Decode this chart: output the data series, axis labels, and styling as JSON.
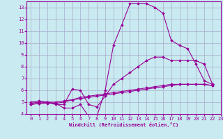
{
  "background_color": "#c8eaf0",
  "grid_color": "#aaaacc",
  "line_color": "#990099",
  "xlim": [
    -0.5,
    23
  ],
  "ylim": [
    4,
    13.5
  ],
  "yticks": [
    4,
    5,
    6,
    7,
    8,
    9,
    10,
    11,
    12,
    13
  ],
  "xticks": [
    0,
    1,
    2,
    3,
    4,
    5,
    6,
    7,
    8,
    9,
    10,
    11,
    12,
    13,
    14,
    15,
    16,
    17,
    18,
    19,
    20,
    21,
    22,
    23
  ],
  "xlabel": "Windchill (Refroidissement éolien,°C)",
  "series": [
    {
      "x": [
        0,
        1,
        2,
        3,
        4,
        5,
        6,
        7,
        8,
        9,
        10,
        11,
        12,
        13,
        14,
        15,
        16,
        17,
        18,
        19,
        20,
        21,
        22
      ],
      "y": [
        5.0,
        5.1,
        5.0,
        4.9,
        4.5,
        4.5,
        4.8,
        3.8,
        3.8,
        6.0,
        9.8,
        11.5,
        13.3,
        13.3,
        13.3,
        13.0,
        12.5,
        10.2,
        9.8,
        9.5,
        8.2,
        6.8,
        6.5
      ]
    },
    {
      "x": [
        0,
        1,
        2,
        3,
        4,
        5,
        6,
        7,
        8,
        9,
        10,
        11,
        12,
        13,
        14,
        15,
        16,
        17,
        18,
        19,
        20,
        21,
        22
      ],
      "y": [
        4.9,
        5.0,
        5.0,
        4.8,
        4.8,
        6.1,
        6.0,
        4.8,
        4.6,
        5.5,
        6.5,
        7.0,
        7.5,
        8.0,
        8.5,
        8.8,
        8.8,
        8.5,
        8.5,
        8.5,
        8.5,
        8.2,
        6.5
      ]
    },
    {
      "x": [
        0,
        1,
        2,
        3,
        4,
        5,
        6,
        7,
        8,
        9,
        10,
        11,
        12,
        13,
        14,
        15,
        16,
        17,
        18,
        19,
        20,
        21,
        22
      ],
      "y": [
        4.8,
        4.9,
        4.9,
        4.9,
        5.0,
        5.2,
        5.4,
        5.5,
        5.6,
        5.7,
        5.8,
        5.9,
        6.0,
        6.1,
        6.2,
        6.3,
        6.4,
        6.5,
        6.5,
        6.5,
        6.5,
        6.5,
        6.4
      ]
    },
    {
      "x": [
        0,
        1,
        2,
        3,
        4,
        5,
        6,
        7,
        8,
        9,
        10,
        11,
        12,
        13,
        14,
        15,
        16,
        17,
        18,
        19,
        20,
        21,
        22
      ],
      "y": [
        4.8,
        4.9,
        5.0,
        5.0,
        5.1,
        5.2,
        5.3,
        5.4,
        5.5,
        5.6,
        5.7,
        5.8,
        5.9,
        6.0,
        6.1,
        6.2,
        6.3,
        6.4,
        6.5,
        6.5,
        6.5,
        6.5,
        6.4
      ]
    }
  ],
  "marker": "D",
  "marker_size": 1.8,
  "line_width": 0.8,
  "font_size_ticks": 5,
  "font_size_label": 5
}
